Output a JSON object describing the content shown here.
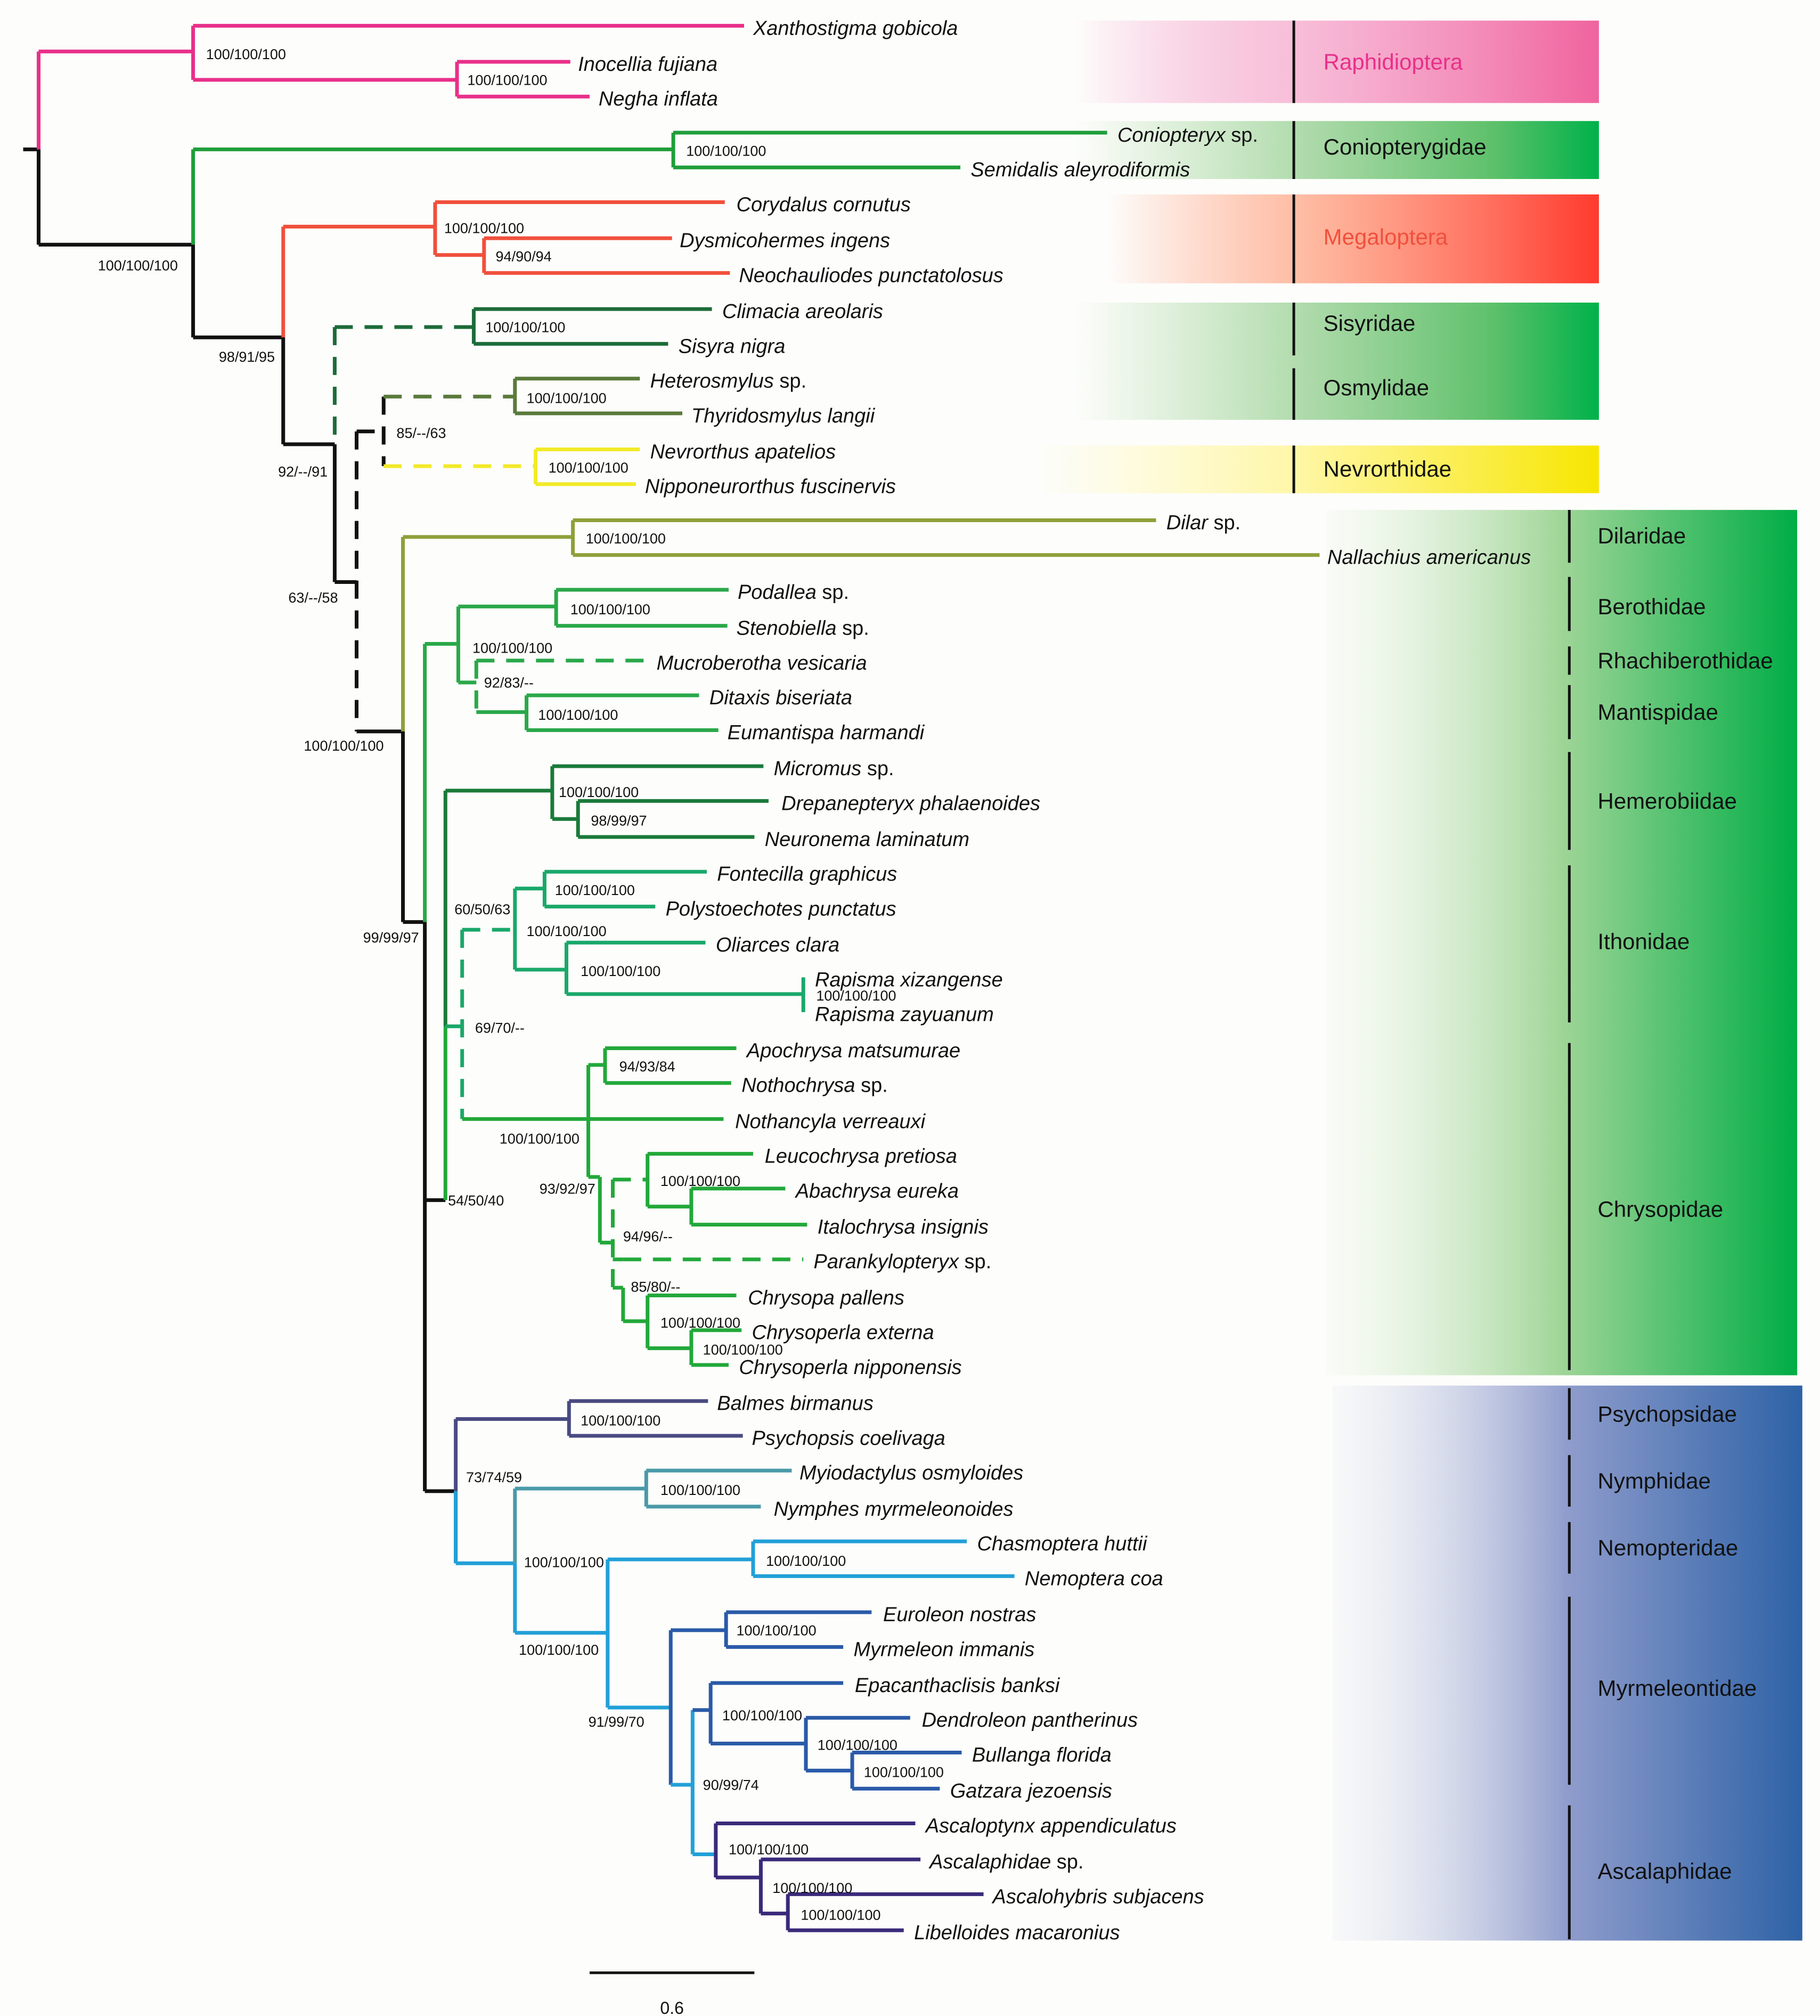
{
  "colors": {
    "raphidioptera": "#e8308a",
    "megaloptera": "#f0503c",
    "coniopterygidae": "#1f9e3a",
    "sisyridae": "#1d6b3a",
    "osmylidae": "#5b7a3c",
    "nevrorthidae": "#f2ea2a",
    "dilaridae": "#8ea03a",
    "berothidae": "#2aa84a",
    "hemerobiidae": "#1a7a3a",
    "ithonidae": "#1aa86a",
    "chrysopidae": "#22a83a",
    "psychopsidae": "#4a4a82",
    "nymphidae": "#4a9aa8",
    "nemopteridae": "#22a0d8",
    "myrmeleontidae": "#2a5aa8",
    "ascalaphidae": "#3a2a7a",
    "backbone": "#111111",
    "green_block": "#00b050",
    "blue_block": "#2e64a8"
  },
  "taxa": [
    {
      "name": "Xanthostigma gobicola",
      "suffix": ""
    },
    {
      "name": "Inocellia fujiana",
      "suffix": ""
    },
    {
      "name": "Negha inflata",
      "suffix": ""
    },
    {
      "name": "Coniopteryx",
      "suffix": " sp."
    },
    {
      "name": "Semidalis aleyrodiformis",
      "suffix": ""
    },
    {
      "name": "Corydalus cornutus",
      "suffix": ""
    },
    {
      "name": "Dysmicohermes ingens",
      "suffix": ""
    },
    {
      "name": "Neochauliodes punctatolosus",
      "suffix": ""
    },
    {
      "name": "Climacia areolaris",
      "suffix": ""
    },
    {
      "name": "Sisyra nigra",
      "suffix": ""
    },
    {
      "name": "Heterosmylus",
      "suffix": " sp."
    },
    {
      "name": "Thyridosmylus langii",
      "suffix": ""
    },
    {
      "name": "Nevrorthus apatelios",
      "suffix": ""
    },
    {
      "name": "Nipponeurorthus fuscinervis",
      "suffix": ""
    },
    {
      "name": "Dilar",
      "suffix": " sp."
    },
    {
      "name": "Nallachius americanus",
      "suffix": ""
    },
    {
      "name": "Podallea",
      "suffix": " sp."
    },
    {
      "name": "Stenobiella",
      "suffix": " sp."
    },
    {
      "name": "Mucroberotha vesicaria",
      "suffix": ""
    },
    {
      "name": "Ditaxis biseriata",
      "suffix": ""
    },
    {
      "name": "Eumantispa harmandi",
      "suffix": ""
    },
    {
      "name": "Micromus",
      "suffix": " sp."
    },
    {
      "name": "Drepanepteryx phalaenoides",
      "suffix": ""
    },
    {
      "name": "Neuronema laminatum",
      "suffix": ""
    },
    {
      "name": "Fontecilla graphicus",
      "suffix": ""
    },
    {
      "name": "Polystoechotes punctatus",
      "suffix": ""
    },
    {
      "name": "Oliarces clara",
      "suffix": ""
    },
    {
      "name": "Rapisma xizangense",
      "suffix": ""
    },
    {
      "name": "Rapisma zayuanum",
      "suffix": ""
    },
    {
      "name": "Apochrysa matsumurae",
      "suffix": ""
    },
    {
      "name": "Nothochrysa",
      "suffix": " sp."
    },
    {
      "name": "Nothancyla verreauxi",
      "suffix": ""
    },
    {
      "name": "Leucochrysa pretiosa",
      "suffix": ""
    },
    {
      "name": "Abachrysa eureka",
      "suffix": ""
    },
    {
      "name": "Italochrysa insignis",
      "suffix": ""
    },
    {
      "name": "Parankylopteryx",
      "suffix": " sp."
    },
    {
      "name": "Chrysopa pallens",
      "suffix": ""
    },
    {
      "name": "Chrysoperla externa",
      "suffix": ""
    },
    {
      "name": "Chrysoperla nipponensis",
      "suffix": ""
    },
    {
      "name": "Balmes birmanus",
      "suffix": ""
    },
    {
      "name": "Psychopsis coelivaga",
      "suffix": ""
    },
    {
      "name": "Myiodactylus osmyloides",
      "suffix": ""
    },
    {
      "name": "Nymphes myrmeleonoides",
      "suffix": ""
    },
    {
      "name": "Chasmoptera huttii",
      "suffix": ""
    },
    {
      "name": "Nemoptera coa",
      "suffix": ""
    },
    {
      "name": "Euroleon nostras",
      "suffix": ""
    },
    {
      "name": "Myrmeleon immanis",
      "suffix": ""
    },
    {
      "name": "Epacanthaclisis banksi",
      "suffix": ""
    },
    {
      "name": "Dendroleon pantherinus",
      "suffix": ""
    },
    {
      "name": "Bullanga florida",
      "suffix": ""
    },
    {
      "name": "Gatzara jezoensis",
      "suffix": ""
    },
    {
      "name": "Ascaloptynx appendiculatus",
      "suffix": ""
    },
    {
      "name": "Ascalaphidae",
      "suffix": " sp."
    },
    {
      "name": "Ascalohybris subjacens",
      "suffix": ""
    },
    {
      "name": "Libelloides macaronius",
      "suffix": ""
    }
  ],
  "support_values": [
    "100/100/100",
    "100/100/100",
    "100/100/100",
    "100/100/100",
    "94/90/94",
    "100/100/100",
    "100/100/100",
    "100/100/100",
    "85/--/63",
    "98/91/95",
    "92/--/91",
    "63/--/58",
    "100/100/100",
    "100/100/100",
    "100/100/100",
    "92/83/--",
    "100/100/100",
    "100/100/100",
    "98/99/97",
    "100/100/100",
    "100/100/100",
    "100/100/100",
    "100/100/100",
    "60/50/63",
    "69/70/--",
    "94/93/84",
    "100/100/100",
    "100/100/100",
    "93/92/97",
    "94/96/--",
    "85/80/--",
    "100/100/100",
    "100/100/100",
    "100/100/100",
    "99/99/97",
    "54/50/40",
    "100/100/100",
    "100/100/100",
    "73/74/59",
    "100/100/100",
    "100/100/100",
    "100/100/100",
    "100/100/100",
    "100/100/100",
    "91/99/70",
    "100/100/100",
    "100/100/100",
    "90/99/74",
    "100/100/100",
    "100/100/100",
    "100/100/100",
    "100/100/100"
  ],
  "families": [
    "Raphidioptera",
    "Coniopterygidae",
    "Megaloptera",
    "Sisyridae",
    "Osmylidae",
    "Nevrorthidae",
    "Dilaridae",
    "Berothidae",
    "Rhachiberothidae",
    "Mantispidae",
    "Hemerobiidae",
    "Ithonidae",
    "Chrysopidae",
    "Psychopsidae",
    "Nymphidae",
    "Nemopteridae",
    "Myrmeleontidae",
    "Ascalaphidae"
  ],
  "scale_bar": {
    "label": "0.6",
    "value": 0.6
  }
}
